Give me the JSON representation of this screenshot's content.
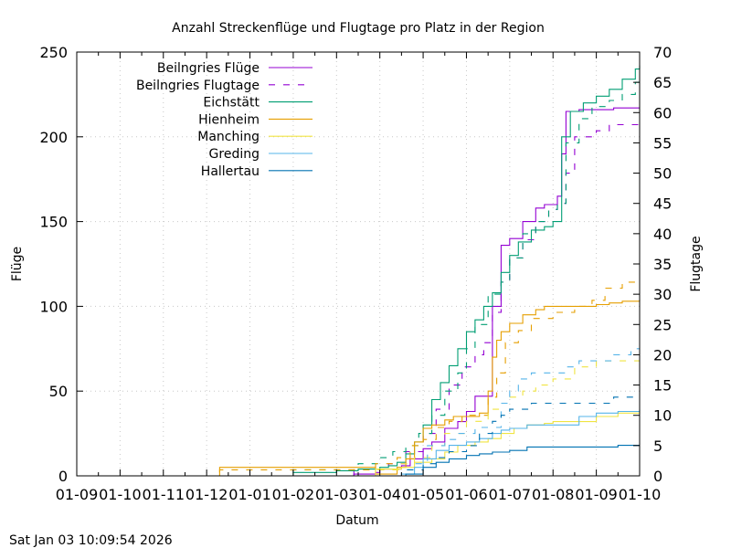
{
  "chart_data": {
    "type": "line",
    "title": "Anzahl Streckenflüge und Flugtage pro Platz in der Region",
    "xlabel": "Datum",
    "ylabel": "Flüge",
    "y2label": "Flugtage",
    "timestamp": "Sat Jan 03 10:09:54 2026",
    "grid": true,
    "legend_position": "top-left",
    "x_unit": "months since 01-09",
    "xlim": [
      0,
      13
    ],
    "ylim": [
      0,
      250
    ],
    "y2lim": [
      0,
      70
    ],
    "x_ticks": [
      "01-09",
      "01-10",
      "01-11",
      "01-12",
      "01-01",
      "01-02",
      "01-03",
      "01-04",
      "01-05",
      "01-06",
      "01-07",
      "01-08",
      "01-09",
      "01-10"
    ],
    "y_ticks": [
      0,
      50,
      100,
      150,
      200,
      250
    ],
    "y2_ticks": [
      0,
      5,
      10,
      15,
      20,
      25,
      30,
      35,
      40,
      45,
      50,
      55,
      60,
      65,
      70
    ],
    "series": [
      {
        "name": "Beilngries Flüge",
        "axis": "y",
        "color": "#9400d3",
        "dash": "solid",
        "x": [
          0,
          6.3,
          6.4,
          6.9,
          7.0,
          7.5,
          7.7,
          8.0,
          8.2,
          8.5,
          8.8,
          9.0,
          9.2,
          9.4,
          9.6,
          9.8,
          10.0,
          10.3,
          10.6,
          10.8,
          11.0,
          11.1,
          11.2,
          11.3,
          11.6,
          12.0,
          12.4,
          13
        ],
        "y": [
          0,
          0,
          1,
          2,
          4,
          6,
          10,
          16,
          20,
          28,
          32,
          38,
          47,
          47,
          100,
          136,
          140,
          150,
          158,
          160,
          160,
          165,
          190,
          215,
          216,
          216,
          217,
          217
        ]
      },
      {
        "name": "Beilngries Flugtage",
        "axis": "y2",
        "color": "#9400d3",
        "dash": "dashed",
        "x": [
          0,
          6.3,
          6.4,
          6.9,
          7.2,
          7.6,
          8.0,
          8.3,
          8.6,
          8.9,
          9.2,
          9.4,
          9.6,
          9.8,
          10.0,
          10.3,
          10.6,
          10.9,
          11.1,
          11.3,
          11.5,
          12.0,
          12.3,
          13
        ],
        "y": [
          0,
          0,
          1,
          1,
          2,
          4,
          7,
          11,
          15,
          18,
          20,
          22,
          27,
          32,
          36,
          39,
          42,
          44,
          45,
          50,
          56,
          57,
          58,
          58
        ]
      },
      {
        "name": "Eichstätt",
        "axis": "y",
        "color": "#009e73",
        "dash": "solid",
        "x": [
          0,
          4.6,
          5.0,
          6.0,
          6.5,
          7.0,
          7.2,
          7.4,
          7.6,
          7.8,
          8.0,
          8.2,
          8.4,
          8.6,
          8.8,
          9.0,
          9.2,
          9.4,
          9.6,
          9.8,
          10.0,
          10.2,
          10.5,
          10.8,
          11.0,
          11.2,
          11.4,
          11.7,
          12.0,
          12.3,
          12.6,
          12.9,
          13
        ],
        "y": [
          0,
          0,
          2,
          3,
          4,
          5,
          6,
          8,
          13,
          20,
          30,
          45,
          55,
          65,
          75,
          85,
          92,
          100,
          108,
          120,
          130,
          138,
          145,
          147,
          150,
          200,
          215,
          220,
          224,
          228,
          234,
          240,
          242
        ]
      },
      {
        "name": "Eichstätt Flugtage",
        "axis": "y2",
        "color": "#009e73",
        "dash": "dashed",
        "x": [
          0,
          4.6,
          5.0,
          6.0,
          6.5,
          7.0,
          7.3,
          7.6,
          7.9,
          8.2,
          8.5,
          8.8,
          9.0,
          9.2,
          9.5,
          9.8,
          10.0,
          10.3,
          10.6,
          10.9,
          11.1,
          11.3,
          11.6,
          11.9,
          12.3,
          12.6,
          12.9,
          13
        ],
        "y": [
          0,
          0,
          1,
          1,
          2,
          3,
          4,
          5,
          7,
          10,
          14,
          17,
          21,
          25,
          30,
          32,
          36,
          40,
          42,
          44,
          45,
          55,
          59,
          61,
          62,
          63,
          65,
          66
        ]
      },
      {
        "name": "Hienheim",
        "axis": "y",
        "color": "#e69f00",
        "dash": "solid",
        "x": [
          0,
          3.2,
          3.3,
          6.8,
          6.9,
          7.4,
          7.6,
          7.8,
          8.0,
          8.2,
          8.5,
          8.7,
          9.0,
          9.3,
          9.5,
          9.6,
          9.7,
          9.8,
          10.0,
          10.3,
          10.6,
          10.8,
          11.0,
          11.5,
          12.0,
          12.3,
          12.6,
          13
        ],
        "y": [
          0,
          0,
          5,
          5,
          1,
          5,
          10,
          20,
          28,
          30,
          33,
          35,
          35,
          37,
          50,
          70,
          80,
          85,
          90,
          95,
          98,
          100,
          100,
          100,
          101,
          102,
          103,
          104
        ]
      },
      {
        "name": "Hienheim Flugtage",
        "axis": "y2",
        "color": "#e69f00",
        "dash": "dashed",
        "x": [
          0,
          3.2,
          3.3,
          6.8,
          6.9,
          7.4,
          7.7,
          8.0,
          8.3,
          8.6,
          8.9,
          9.2,
          9.5,
          9.7,
          9.9,
          10.2,
          10.5,
          11.0,
          11.5,
          11.9,
          12.2,
          12.6,
          13
        ],
        "y": [
          0,
          0,
          1,
          1,
          2,
          3,
          5,
          6,
          8,
          9,
          10,
          10,
          13,
          17,
          22,
          24,
          26,
          27,
          28,
          29,
          31,
          32,
          32
        ]
      },
      {
        "name": "Manching",
        "axis": "y",
        "color": "#f0e442",
        "dash": "solid",
        "x": [
          0,
          6.8,
          6.9,
          7.5,
          7.8,
          8.2,
          8.5,
          8.8,
          9.2,
          9.5,
          9.8,
          10.1,
          10.4,
          10.8,
          11.0,
          11.5,
          12.0,
          12.5,
          13
        ],
        "y": [
          0,
          0,
          4,
          5,
          8,
          10,
          14,
          18,
          20,
          22,
          25,
          28,
          30,
          31,
          32,
          32,
          35,
          37,
          38
        ]
      },
      {
        "name": "Manching Flugtage",
        "axis": "y2",
        "color": "#f0e442",
        "dash": "dashed",
        "x": [
          0,
          6.8,
          6.9,
          7.5,
          7.8,
          8.2,
          8.5,
          9.0,
          9.5,
          9.8,
          10.0,
          10.3,
          10.6,
          11.0,
          11.5,
          12.0,
          12.3,
          13
        ],
        "y": [
          0,
          0,
          1,
          2,
          3,
          5,
          7,
          9,
          11,
          12,
          13,
          14,
          15,
          16,
          18,
          19,
          19,
          19
        ]
      },
      {
        "name": "Greding",
        "axis": "y",
        "color": "#56b4e9",
        "dash": "solid",
        "x": [
          0,
          7.4,
          7.5,
          7.8,
          8.0,
          8.3,
          8.6,
          9.0,
          9.3,
          9.6,
          9.8,
          10.0,
          10.4,
          10.8,
          11.3,
          11.6,
          12.0,
          12.5,
          13
        ],
        "y": [
          0,
          0,
          1,
          5,
          10,
          15,
          18,
          20,
          22,
          25,
          27,
          28,
          30,
          30,
          30,
          35,
          37,
          38,
          39
        ]
      },
      {
        "name": "Greding Flugtage",
        "axis": "y2",
        "color": "#56b4e9",
        "dash": "dashed",
        "x": [
          0,
          7.4,
          7.5,
          7.8,
          8.1,
          8.5,
          8.8,
          9.2,
          9.5,
          9.8,
          10.0,
          10.2,
          10.5,
          11.0,
          11.3,
          11.6,
          12.0,
          12.4,
          12.8,
          13
        ],
        "y": [
          0,
          0,
          1,
          2,
          5,
          6,
          7,
          8,
          8,
          12,
          14,
          16,
          17,
          17,
          18,
          19,
          19,
          20,
          21,
          21
        ]
      },
      {
        "name": "Hallertau",
        "axis": "y",
        "color": "#0072b2",
        "dash": "solid",
        "x": [
          0,
          7.5,
          7.6,
          8.0,
          8.3,
          8.6,
          9.0,
          9.3,
          9.6,
          10.0,
          10.4,
          10.8,
          11.2,
          11.6,
          12.0,
          12.5,
          13
        ],
        "y": [
          0,
          0,
          1,
          5,
          8,
          10,
          12,
          13,
          14,
          15,
          17,
          17,
          17,
          17,
          17,
          18,
          18
        ]
      },
      {
        "name": "Hallertau Flugtage",
        "axis": "y2",
        "color": "#0072b2",
        "dash": "dashed",
        "x": [
          0,
          7.5,
          7.6,
          8.0,
          8.3,
          8.6,
          9.0,
          9.3,
          9.6,
          9.8,
          10.0,
          10.5,
          11.0,
          11.5,
          12.0,
          12.4,
          13
        ],
        "y": [
          0,
          0,
          1,
          2,
          3,
          4,
          5,
          7,
          9,
          10,
          11,
          12,
          12,
          12,
          12,
          13,
          13
        ]
      }
    ],
    "legend": [
      {
        "label": "Beilngries Flüge",
        "color": "#9400d3",
        "dash": "solid"
      },
      {
        "label": "Beilngries Flugtage",
        "color": "#9400d3",
        "dash": "dashed"
      },
      {
        "label": "Eichstätt",
        "color": "#009e73",
        "dash": "solid"
      },
      {
        "label": "Hienheim",
        "color": "#e69f00",
        "dash": "solid"
      },
      {
        "label": "Manching",
        "color": "#f0e442",
        "dash": "solid"
      },
      {
        "label": "Greding",
        "color": "#56b4e9",
        "dash": "solid"
      },
      {
        "label": "Hallertau",
        "color": "#0072b2",
        "dash": "solid"
      }
    ]
  }
}
